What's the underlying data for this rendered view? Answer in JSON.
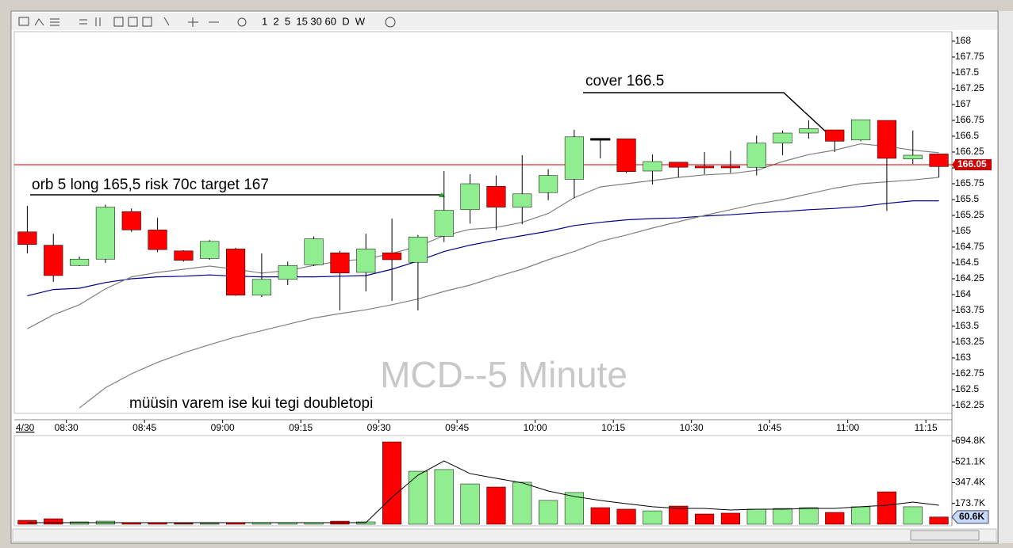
{
  "toolbar": {
    "intervals": "1  2  5  15 30 60  D  W"
  },
  "chart_data": [
    {
      "type": "candlestick",
      "title": "MCD--5 Minute",
      "date_label": "4/30",
      "open": [
        164.99,
        164.78,
        164.46,
        164.56,
        165.31,
        165.02,
        164.69,
        164.57,
        164.72,
        163.99,
        164.24,
        164.47,
        164.66,
        164.35,
        164.66,
        164.51,
        164.92,
        165.34,
        165.71,
        165.38,
        165.61,
        165.82,
        166.46,
        166.46,
        165.95,
        166.09,
        166.03,
        166.03,
        166.01,
        166.39,
        166.55,
        166.6,
        166.44,
        166.75,
        166.14,
        166.22
      ],
      "high": [
        165.4,
        164.96,
        164.6,
        165.42,
        165.36,
        165.21,
        164.7,
        164.86,
        164.74,
        164.65,
        164.52,
        164.92,
        164.69,
        164.96,
        165.2,
        164.94,
        165.95,
        165.9,
        165.88,
        166.2,
        165.98,
        166.6,
        166.47,
        166.46,
        166.21,
        166.09,
        166.25,
        166.27,
        166.51,
        166.59,
        166.75,
        166.6,
        166.76,
        166.75,
        166.59,
        166.22
      ],
      "low": [
        164.65,
        164.2,
        164.45,
        164.5,
        164.99,
        164.67,
        164.52,
        164.55,
        163.98,
        163.96,
        164.15,
        164.45,
        163.75,
        164.05,
        163.9,
        163.75,
        164.83,
        165.12,
        165.02,
        165.11,
        165.49,
        165.52,
        166.15,
        165.92,
        165.74,
        165.85,
        165.9,
        165.92,
        165.88,
        166.2,
        166.46,
        166.25,
        166.42,
        165.32,
        166.06,
        165.85
      ],
      "close": [
        164.79,
        164.3,
        164.56,
        165.38,
        165.02,
        164.71,
        164.54,
        164.84,
        163.99,
        164.24,
        164.46,
        164.88,
        164.34,
        164.72,
        164.55,
        164.91,
        165.33,
        165.75,
        165.38,
        165.59,
        165.88,
        166.49,
        166.46,
        165.94,
        166.1,
        166.01,
        166,
        166,
        166.39,
        166.55,
        166.62,
        166.42,
        166.76,
        166.15,
        166.2,
        166.02
      ],
      "up_color": "#90ee90",
      "down_color": "#ff0000",
      "lines": [
        {
          "color": "#00008b",
          "values": [
            163.98,
            164.08,
            164.1,
            164.19,
            164.25,
            164.28,
            164.29,
            164.31,
            164.29,
            164.28,
            164.28,
            164.28,
            164.29,
            164.3,
            164.4,
            164.53,
            164.68,
            164.78,
            164.86,
            164.93,
            165,
            165.09,
            165.14,
            165.18,
            165.2,
            165.21,
            165.24,
            165.26,
            165.29,
            165.31,
            165.34,
            165.36,
            165.39,
            165.44,
            165.48,
            165.48
          ]
        },
        {
          "color": "#808080",
          "values": [
            163.46,
            163.68,
            163.84,
            164.09,
            164.28,
            164.35,
            164.4,
            164.45,
            164.4,
            164.34,
            164.38,
            164.46,
            164.53,
            164.56,
            164.65,
            164.76,
            164.93,
            165.03,
            165.06,
            165.14,
            165.28,
            165.53,
            165.7,
            165.75,
            165.8,
            165.85,
            165.89,
            165.91,
            165.96,
            166.1,
            166.21,
            166.28,
            166.38,
            166.34,
            166.28,
            166.24
          ]
        },
        {
          "color": "#808080",
          "values": [
            null,
            null,
            162.21,
            162.53,
            162.75,
            162.93,
            163.08,
            163.21,
            163.33,
            163.43,
            163.53,
            163.63,
            163.7,
            163.76,
            163.84,
            163.93,
            164.05,
            164.15,
            164.28,
            164.4,
            164.55,
            164.68,
            164.84,
            164.94,
            165.05,
            165.15,
            165.25,
            165.34,
            165.43,
            165.5,
            165.59,
            165.68,
            165.75,
            165.78,
            165.81,
            165.85
          ]
        }
      ],
      "reference_line": 166.05,
      "reference_color": "#d00000",
      "xlim": [
        -0.5,
        35.5
      ],
      "ylim": [
        162.125,
        168.15
      ],
      "xticks": [
        {
          "value": 1.5,
          "label": "08:30"
        },
        {
          "value": 4.5,
          "label": "08:45"
        },
        {
          "value": 7.5,
          "label": "09:00"
        },
        {
          "value": 10.5,
          "label": "09:15"
        },
        {
          "value": 13.5,
          "label": "09:30"
        },
        {
          "value": 16.5,
          "label": "09:45"
        },
        {
          "value": 19.5,
          "label": "10:00"
        },
        {
          "value": 22.5,
          "label": "10:15"
        },
        {
          "value": 25.5,
          "label": "10:30"
        },
        {
          "value": 28.5,
          "label": "10:45"
        },
        {
          "value": 31.5,
          "label": "11:00"
        },
        {
          "value": 34.5,
          "label": "11:15"
        }
      ],
      "yticks": [
        168,
        167.75,
        167.5,
        167.25,
        167,
        166.75,
        166.5,
        166.25,
        166,
        165.75,
        165.5,
        165.25,
        165,
        164.75,
        164.5,
        164.25,
        164,
        163.75,
        163.5,
        163.25,
        163,
        162.75,
        162.5,
        162.25
      ],
      "annotations": [
        "orb 5 long 165,5 risk 70c target 167",
        "cover 166.5",
        "müüsin varem ise kui tegi doubletopi"
      ]
    },
    {
      "type": "bar",
      "values": [
        33000,
        46000,
        20000,
        26000,
        13000,
        13000,
        7000,
        7000,
        13000,
        13000,
        13000,
        13000,
        26000,
        20000,
        688000,
        443000,
        457000,
        337000,
        311000,
        351000,
        199000,
        265000,
        139000,
        126000,
        112000,
        152000,
        86000,
        93000,
        126000,
        132000,
        139000,
        99000,
        146000,
        271000,
        146000,
        60600
      ],
      "moving_average": [
        13000,
        13000,
        13000,
        13000,
        13000,
        13000,
        13000,
        13000,
        13000,
        13000,
        13000,
        13000,
        13000,
        13000,
        225000,
        410000,
        529000,
        423000,
        384000,
        346000,
        278000,
        232000,
        199000,
        172000,
        146000,
        132000,
        132000,
        119000,
        126000,
        126000,
        132000,
        132000,
        146000,
        159000,
        185000,
        159000
      ],
      "ylim": [
        0,
        741000
      ],
      "yticks": [
        {
          "value": 694800,
          "label": "694.8K"
        },
        {
          "value": 521100,
          "label": "521.1K"
        },
        {
          "value": 347400,
          "label": "347.4K"
        },
        {
          "value": 173700,
          "label": "173.7K"
        }
      ],
      "last_label": {
        "value": 60600,
        "label": "60.6K"
      }
    }
  ]
}
